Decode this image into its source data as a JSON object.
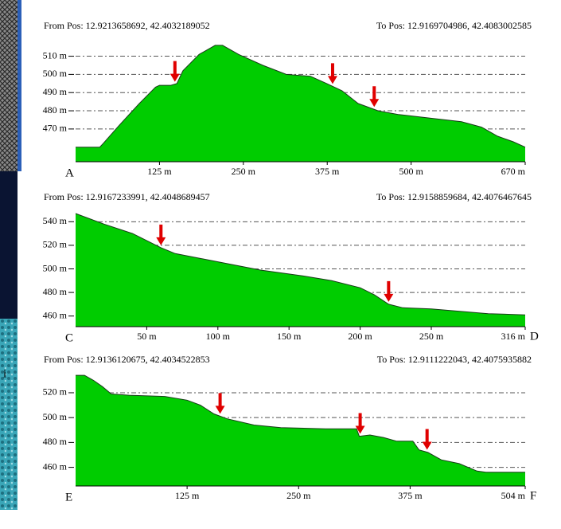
{
  "side_text": "i",
  "chart_data": [
    {
      "type": "area",
      "from_pos": "From Pos: 12.9213658692, 42.4032189052",
      "to_pos": "To Pos: 12.9169704986, 42.4083002585",
      "start_label": "A",
      "color": "#00cc00",
      "grid": true,
      "arrow_color": "#e00000",
      "x": [
        0,
        36,
        41,
        65,
        95,
        119,
        125,
        142,
        151,
        160,
        184,
        208,
        219,
        243,
        279,
        314,
        350,
        374,
        397,
        421,
        451,
        480,
        528,
        575,
        605,
        629,
        652,
        670
      ],
      "values": [
        460,
        460,
        462,
        472,
        484,
        493,
        494,
        494,
        495,
        502,
        511,
        516,
        516,
        511,
        505,
        500,
        499,
        495,
        491,
        484,
        480,
        478,
        476,
        474,
        471,
        466,
        463,
        460
      ],
      "arrows_x": [
        148,
        383,
        445
      ],
      "xlim": [
        0,
        670
      ],
      "ylim": [
        452,
        519
      ],
      "xticks": [
        {
          "value": 125,
          "label": "125 m"
        },
        {
          "value": 250,
          "label": "250 m"
        },
        {
          "value": 375,
          "label": "375 m"
        },
        {
          "value": 500,
          "label": "500 m"
        },
        {
          "value": 670,
          "label": "670 m"
        }
      ],
      "yticks": [
        {
          "value": 470,
          "label": "470 m"
        },
        {
          "value": 480,
          "label": "480 m"
        },
        {
          "value": 490,
          "label": "490 m"
        },
        {
          "value": 500,
          "label": "500 m"
        },
        {
          "value": 510,
          "label": "510 m"
        }
      ]
    },
    {
      "type": "area",
      "from_pos": "From Pos: 12.9167233991, 42.4048689457",
      "to_pos": "To Pos: 12.9158859684, 42.4076467645",
      "start_label": "C",
      "end_label": "D",
      "color": "#00cc00",
      "grid": true,
      "arrow_color": "#e00000",
      "x": [
        0,
        20,
        40,
        60,
        70,
        100,
        130,
        160,
        180,
        200,
        210,
        220,
        230,
        250,
        270,
        290,
        316
      ],
      "values": [
        547,
        538,
        530,
        518,
        513,
        506,
        499,
        494,
        490,
        484,
        478,
        470,
        467,
        466,
        464,
        462,
        461
      ],
      "arrows_x": [
        60,
        220
      ],
      "xlim": [
        0,
        316
      ],
      "ylim": [
        451,
        549
      ],
      "xticks": [
        {
          "value": 50,
          "label": "50 m"
        },
        {
          "value": 100,
          "label": "100 m"
        },
        {
          "value": 150,
          "label": "150 m"
        },
        {
          "value": 200,
          "label": "200 m"
        },
        {
          "value": 250,
          "label": "250 m"
        },
        {
          "value": 316,
          "label": "316 m"
        }
      ],
      "yticks": [
        {
          "value": 460,
          "label": "460 m"
        },
        {
          "value": 480,
          "label": "480 m"
        },
        {
          "value": 500,
          "label": "500 m"
        },
        {
          "value": 520,
          "label": "520 m"
        },
        {
          "value": 540,
          "label": "540 m"
        }
      ]
    },
    {
      "type": "area",
      "from_pos": "From Pos: 12.9136120675, 42.4034522853",
      "to_pos": "To Pos: 12.9111222043, 42.4075935882",
      "start_label": "E",
      "end_label": "F",
      "color": "#00cc00",
      "grid": true,
      "arrow_color": "#e00000",
      "x": [
        0,
        10,
        20,
        30,
        40,
        60,
        100,
        125,
        140,
        155,
        170,
        200,
        230,
        280,
        315,
        318,
        330,
        345,
        360,
        378,
        385,
        395,
        410,
        430,
        450,
        460,
        504
      ],
      "values": [
        534,
        534,
        530,
        525,
        519,
        518,
        517,
        514,
        510,
        503,
        499,
        494,
        492,
        491,
        491,
        485,
        486,
        484,
        481,
        481,
        474,
        472,
        466,
        463,
        457,
        456,
        456
      ],
      "arrows_x": [
        162,
        319,
        394
      ],
      "xlim": [
        0,
        504
      ],
      "ylim": [
        445,
        536
      ],
      "xticks": [
        {
          "value": 125,
          "label": "125 m"
        },
        {
          "value": 250,
          "label": "250 m"
        },
        {
          "value": 375,
          "label": "375 m"
        },
        {
          "value": 504,
          "label": "504 m"
        }
      ],
      "yticks": [
        {
          "value": 460,
          "label": "460 m"
        },
        {
          "value": 480,
          "label": "480 m"
        },
        {
          "value": 500,
          "label": "500 m"
        },
        {
          "value": 520,
          "label": "520 m"
        }
      ]
    }
  ]
}
